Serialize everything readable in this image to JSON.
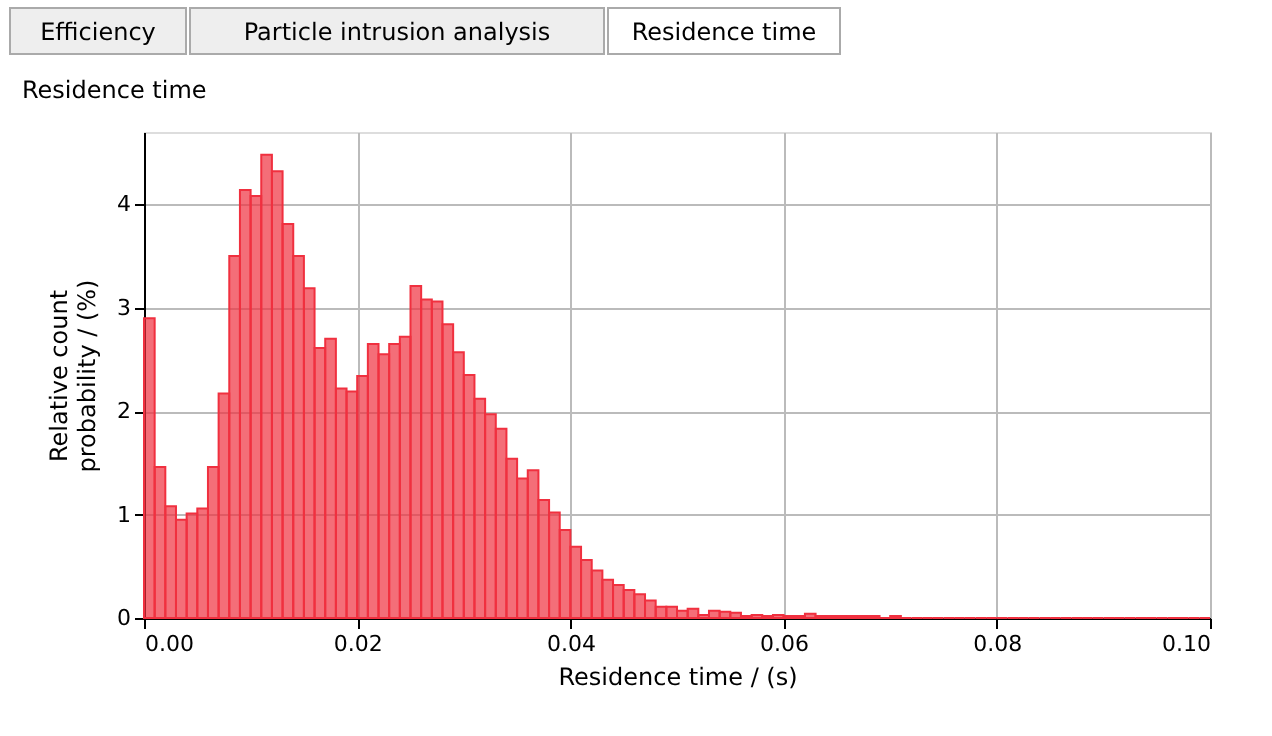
{
  "chart_data": {
    "type": "histogram",
    "title": "Residence time",
    "xlabel": "Residence time / (s)",
    "ylabel": "Relative count\nprobability / (%)",
    "annotations": [
      "Efficiency",
      "Particle intrusion analysis",
      "Residence time"
    ],
    "bins": [
      0,
      0.001,
      0.002,
      0.003,
      0.004,
      0.005,
      0.006,
      0.007,
      0.008,
      0.009,
      0.01,
      0.011,
      0.012,
      0.013,
      0.014,
      0.015,
      0.016,
      0.017,
      0.018,
      0.019,
      0.02,
      0.021,
      0.022,
      0.023,
      0.024,
      0.025,
      0.026,
      0.027,
      0.028,
      0.029,
      0.03,
      0.031,
      0.032,
      0.033,
      0.034,
      0.035,
      0.036,
      0.037,
      0.038,
      0.039,
      0.04,
      0.041,
      0.042,
      0.043,
      0.044,
      0.045,
      0.046,
      0.047,
      0.048,
      0.049,
      0.05,
      0.051,
      0.052,
      0.053,
      0.054,
      0.055,
      0.056,
      0.057,
      0.058,
      0.059,
      0.06,
      0.061,
      0.062,
      0.063,
      0.064,
      0.065,
      0.066,
      0.067,
      0.068,
      0.069,
      0.07,
      0.071,
      0.072,
      0.073,
      0.074,
      0.075,
      0.076,
      0.077,
      0.078,
      0.079,
      0.08,
      0.081,
      0.082,
      0.083,
      0.084,
      0.085,
      0.086,
      0.087,
      0.088,
      0.089,
      0.09,
      0.091,
      0.092,
      0.093,
      0.094,
      0.095,
      0.096,
      0.097,
      0.098,
      0.099,
      0.1
    ],
    "values": [
      2.9,
      1.46,
      1.08,
      0.95,
      1.01,
      1.06,
      1.46,
      2.17,
      3.5,
      4.14,
      4.08,
      4.48,
      4.32,
      3.81,
      3.5,
      3.19,
      2.61,
      2.7,
      2.22,
      2.19,
      2.34,
      2.65,
      2.55,
      2.65,
      2.72,
      3.21,
      3.08,
      3.06,
      2.84,
      2.57,
      2.35,
      2.12,
      1.97,
      1.83,
      1.54,
      1.35,
      1.43,
      1.14,
      1.02,
      0.85,
      0.69,
      0.56,
      0.46,
      0.37,
      0.32,
      0.27,
      0.23,
      0.17,
      0.11,
      0.11,
      0.07,
      0.09,
      0.03,
      0.07,
      0.06,
      0.05,
      0.02,
      0.03,
      0.02,
      0.03,
      0.02,
      0.02,
      0.04,
      0.02,
      0.02,
      0.02,
      0.02,
      0.02,
      0.02,
      0,
      0.02,
      0,
      0,
      0,
      0,
      0,
      0,
      0,
      0,
      0,
      0,
      0,
      0,
      0,
      0,
      0,
      0,
      0,
      0,
      0,
      0,
      0,
      0,
      0,
      0,
      0,
      0,
      0,
      0,
      0
    ],
    "color": "#f0303f",
    "xlim": [
      0,
      0.1
    ],
    "xticks": [
      {
        "value": 0,
        "label": "0.00"
      },
      {
        "value": 0.02,
        "label": "0.02"
      },
      {
        "value": 0.04,
        "label": "0.04"
      },
      {
        "value": 0.06,
        "label": "0.06"
      },
      {
        "value": 0.08,
        "label": "0.08"
      },
      {
        "value": 0.1,
        "label": "0.10"
      }
    ],
    "ylim": [
      0,
      4.7
    ],
    "yticks": [
      0,
      1,
      2,
      3,
      4
    ],
    "grid": true
  }
}
